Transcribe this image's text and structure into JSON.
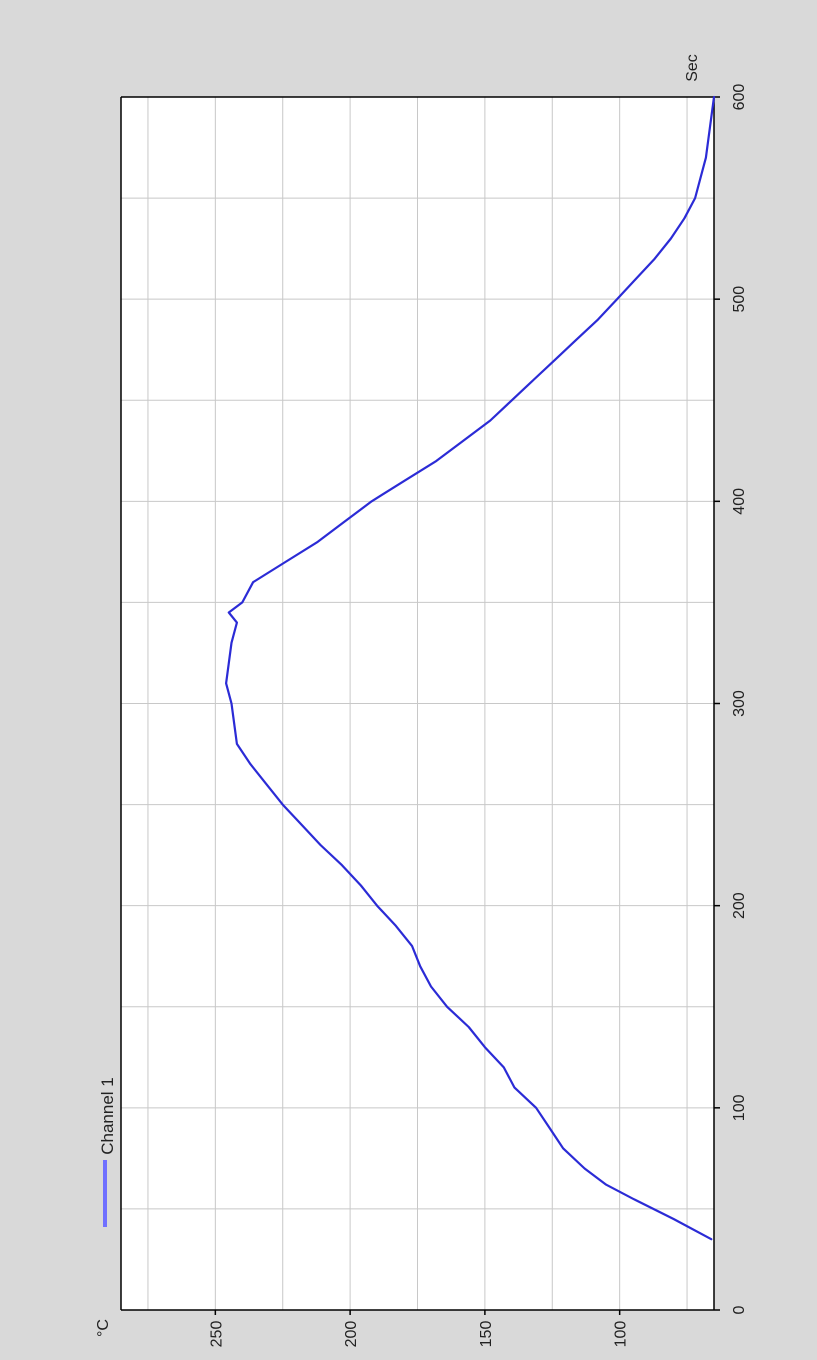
{
  "colors": {
    "page_background": "#d9d9d9",
    "plot_background": "#ffffff",
    "grid": "#c8c8c8",
    "axis": "#000000",
    "series": "#2b2bd6",
    "legend_swatch": "#7070ff"
  },
  "chart_data": {
    "type": "line",
    "orientation": "rotated 90 degrees counter-clockwise",
    "xlabel": "Sec",
    "ylabel": "°C",
    "xlim": [
      0,
      600
    ],
    "ylim": [
      65,
      285
    ],
    "x_ticks": [
      0,
      100,
      200,
      300,
      400,
      500,
      600
    ],
    "y_ticks": [
      100,
      150,
      200,
      250
    ],
    "grid": true,
    "legend_position": "top-left",
    "series": [
      {
        "name": "Channel 1",
        "x": [
          35,
          45,
          55,
          62,
          70,
          80,
          90,
          100,
          110,
          120,
          130,
          140,
          150,
          160,
          170,
          180,
          190,
          200,
          210,
          220,
          230,
          240,
          250,
          260,
          270,
          280,
          290,
          300,
          310,
          320,
          330,
          340,
          345,
          350,
          360,
          370,
          380,
          390,
          400,
          410,
          420,
          430,
          440,
          450,
          460,
          470,
          480,
          490,
          500,
          510,
          520,
          530,
          540,
          550,
          560,
          570,
          580,
          590,
          600
        ],
        "y": [
          66,
          80,
          95,
          105,
          113,
          121,
          126,
          131,
          139,
          143,
          150,
          156,
          164,
          170,
          174,
          177,
          183,
          190,
          196,
          203,
          211,
          218,
          225,
          231,
          237,
          242,
          243,
          244,
          246,
          245,
          244,
          242,
          245,
          240,
          236,
          224,
          212,
          202,
          192,
          180,
          168,
          158,
          148,
          140,
          132,
          124,
          116,
          108,
          101,
          94,
          87,
          81,
          76,
          72,
          70,
          68,
          67,
          66,
          65
        ]
      }
    ]
  }
}
